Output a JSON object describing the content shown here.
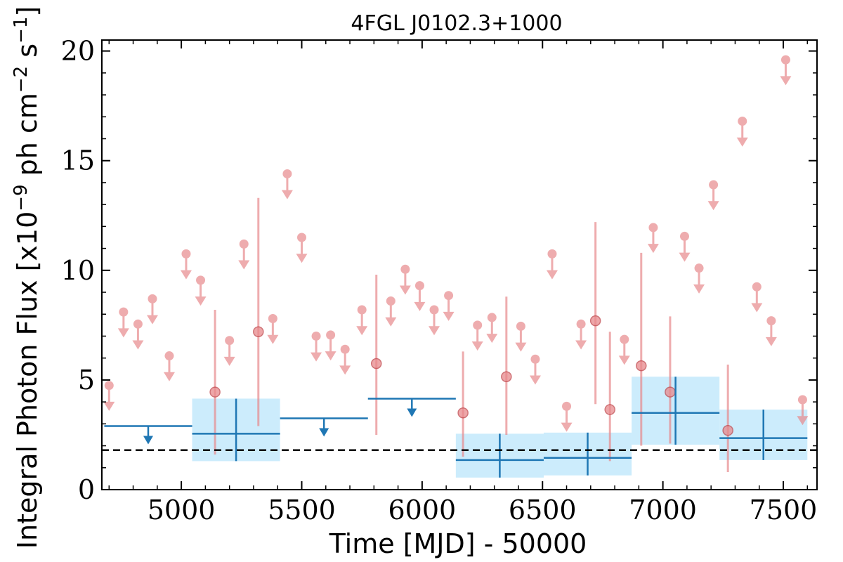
{
  "chart_data": {
    "type": "scatter",
    "title": "4FGL J0102.3+1000",
    "xlabel": "Time [MJD] - 50000",
    "ylabel_prefix": "Integral Photon Flux [x10",
    "ylabel_exp1": "−9",
    "ylabel_mid": " ph cm",
    "ylabel_exp2": "−2",
    "ylabel_mid2": " s",
    "ylabel_exp3": "−1",
    "ylabel_suffix": "]",
    "xlim": [
      4670,
      7640
    ],
    "ylim": [
      0,
      20.5
    ],
    "x_ticks": [
      5000,
      5500,
      6000,
      6500,
      7000,
      7500
    ],
    "x_tick_labels": [
      "5000",
      "5500",
      "6000",
      "6500",
      "7000",
      "7500"
    ],
    "y_ticks": [
      0,
      5,
      10,
      15,
      20
    ],
    "y_tick_labels": [
      "0",
      "5",
      "10",
      "15",
      "20"
    ],
    "reference_line": {
      "y": 1.8,
      "style": "dashed",
      "color": "#000000"
    },
    "colors": {
      "short_bins": "#e8898c",
      "long_bins": "#1f77b4",
      "long_bins_box": "#bfe7fb"
    },
    "series": [
      {
        "bin_width_days": 60,
        "upper_limits": [
          {
            "x": 4700,
            "y": 4.75
          },
          {
            "x": 4760,
            "y": 8.1
          },
          {
            "x": 4820,
            "y": 7.55
          },
          {
            "x": 4880,
            "y": 8.7
          },
          {
            "x": 4950,
            "y": 6.1
          },
          {
            "x": 5020,
            "y": 10.75
          },
          {
            "x": 5080,
            "y": 9.55
          },
          {
            "x": 5200,
            "y": 6.8
          },
          {
            "x": 5260,
            "y": 11.2
          },
          {
            "x": 5380,
            "y": 7.8
          },
          {
            "x": 5440,
            "y": 14.4
          },
          {
            "x": 5500,
            "y": 11.5
          },
          {
            "x": 5560,
            "y": 7.0
          },
          {
            "x": 5620,
            "y": 7.05
          },
          {
            "x": 5680,
            "y": 6.4
          },
          {
            "x": 5750,
            "y": 8.2
          },
          {
            "x": 5870,
            "y": 8.6
          },
          {
            "x": 5930,
            "y": 10.05
          },
          {
            "x": 5990,
            "y": 9.3
          },
          {
            "x": 6050,
            "y": 8.2
          },
          {
            "x": 6110,
            "y": 8.85
          },
          {
            "x": 6230,
            "y": 7.5
          },
          {
            "x": 6290,
            "y": 7.85
          },
          {
            "x": 6410,
            "y": 7.45
          },
          {
            "x": 6470,
            "y": 5.95
          },
          {
            "x": 6540,
            "y": 10.75
          },
          {
            "x": 6600,
            "y": 3.8
          },
          {
            "x": 6660,
            "y": 7.55
          },
          {
            "x": 6840,
            "y": 6.85
          },
          {
            "x": 6960,
            "y": 11.95
          },
          {
            "x": 7090,
            "y": 11.55
          },
          {
            "x": 7150,
            "y": 10.1
          },
          {
            "x": 7210,
            "y": 13.9
          },
          {
            "x": 7330,
            "y": 16.8
          },
          {
            "x": 7390,
            "y": 9.25
          },
          {
            "x": 7450,
            "y": 7.7
          },
          {
            "x": 7510,
            "y": 19.6
          },
          {
            "x": 7580,
            "y": 4.1
          }
        ],
        "detections": [
          {
            "x": 5140,
            "y": 4.45,
            "ylo": 1.6,
            "yhi": 8.2
          },
          {
            "x": 5320,
            "y": 7.2,
            "ylo": 2.9,
            "yhi": 13.3
          },
          {
            "x": 5810,
            "y": 5.75,
            "ylo": 2.5,
            "yhi": 9.8
          },
          {
            "x": 6170,
            "y": 3.5,
            "ylo": 1.5,
            "yhi": 6.3
          },
          {
            "x": 6350,
            "y": 5.15,
            "ylo": 2.5,
            "yhi": 8.8
          },
          {
            "x": 6720,
            "y": 7.7,
            "ylo": 3.9,
            "yhi": 12.2
          },
          {
            "x": 6780,
            "y": 3.65,
            "ylo": 1.3,
            "yhi": 7.2
          },
          {
            "x": 6910,
            "y": 5.65,
            "ylo": 2.0,
            "yhi": 10.8
          },
          {
            "x": 7030,
            "y": 4.45,
            "ylo": 2.1,
            "yhi": 7.9
          },
          {
            "x": 7270,
            "y": 2.7,
            "ylo": 0.8,
            "yhi": 5.7
          }
        ]
      },
      {
        "bin_width_days": 365,
        "upper_limits": [
          {
            "x0": 4680,
            "x1": 5045,
            "y": 2.9
          },
          {
            "x0": 5410,
            "x1": 5775,
            "y": 3.25
          },
          {
            "x0": 5775,
            "x1": 6140,
            "y": 4.15
          }
        ],
        "detections": [
          {
            "x0": 5045,
            "x1": 5410,
            "y": 2.55,
            "ylo": 1.3,
            "yhi": 4.15
          },
          {
            "x0": 6140,
            "x1": 6505,
            "y": 1.35,
            "ylo": 0.55,
            "yhi": 2.55
          },
          {
            "x0": 6505,
            "x1": 6870,
            "y": 1.45,
            "ylo": 0.65,
            "yhi": 2.6
          },
          {
            "x0": 6870,
            "x1": 7235,
            "y": 3.5,
            "ylo": 2.05,
            "yhi": 5.15
          },
          {
            "x0": 7235,
            "x1": 7600,
            "y": 2.35,
            "ylo": 1.35,
            "yhi": 3.65
          }
        ]
      }
    ]
  }
}
